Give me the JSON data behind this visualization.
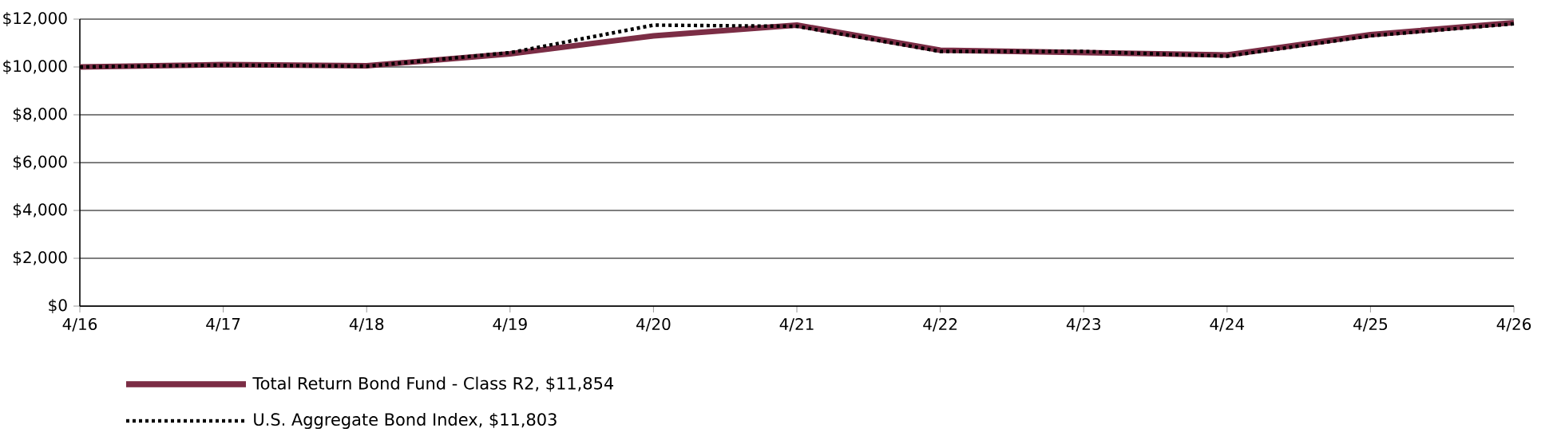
{
  "chart_data": {
    "type": "line",
    "x": [
      "2016-04",
      "2017-04",
      "2018-04",
      "2019-04",
      "2020-04",
      "2021-04",
      "2022-04",
      "2023-04",
      "2024-04",
      "2025-04",
      "2026-04"
    ],
    "series": [
      {
        "name": "Total Return Bond Fund - Class R2, $11,854",
        "color": "#7b2d45",
        "line_style": "solid",
        "values": [
          10000,
          10100,
          10050,
          10550,
          11300,
          11750,
          10700,
          10600,
          10500,
          11350,
          11854
        ]
      },
      {
        "name": "U.S. Aggregate Bond Index, $11,803",
        "color": "#000000",
        "line_style": "dotted",
        "values": [
          10000,
          10080,
          10030,
          10600,
          11750,
          11700,
          10650,
          10650,
          10450,
          11300,
          11803
        ]
      }
    ],
    "xlim": [
      "2016-04",
      "2026-04"
    ],
    "xticks": [
      {
        "value": "2016-04",
        "label": "4/16"
      },
      {
        "value": "2017-04",
        "label": "4/17"
      },
      {
        "value": "2018-04",
        "label": "4/18"
      },
      {
        "value": "2019-04",
        "label": "4/19"
      },
      {
        "value": "2020-04",
        "label": "4/20"
      },
      {
        "value": "2021-04",
        "label": "4/21"
      },
      {
        "value": "2022-04",
        "label": "4/22"
      },
      {
        "value": "2023-04",
        "label": "4/23"
      },
      {
        "value": "2024-04",
        "label": "4/24"
      },
      {
        "value": "2025-04",
        "label": "4/25"
      },
      {
        "value": "2026-04",
        "label": "4/26"
      }
    ],
    "ylim": [
      0,
      12000
    ],
    "yticks": [
      {
        "value": 0,
        "label": "$0"
      },
      {
        "value": 2000,
        "label": "$2,000"
      },
      {
        "value": 4000,
        "label": "$4,000"
      },
      {
        "value": 6000,
        "label": "$6,000"
      },
      {
        "value": 8000,
        "label": "$8,000"
      },
      {
        "value": 10000,
        "label": "$10,000"
      },
      {
        "value": 12000,
        "label": "$12,000"
      }
    ],
    "grid": "y",
    "legend": "bottom"
  }
}
